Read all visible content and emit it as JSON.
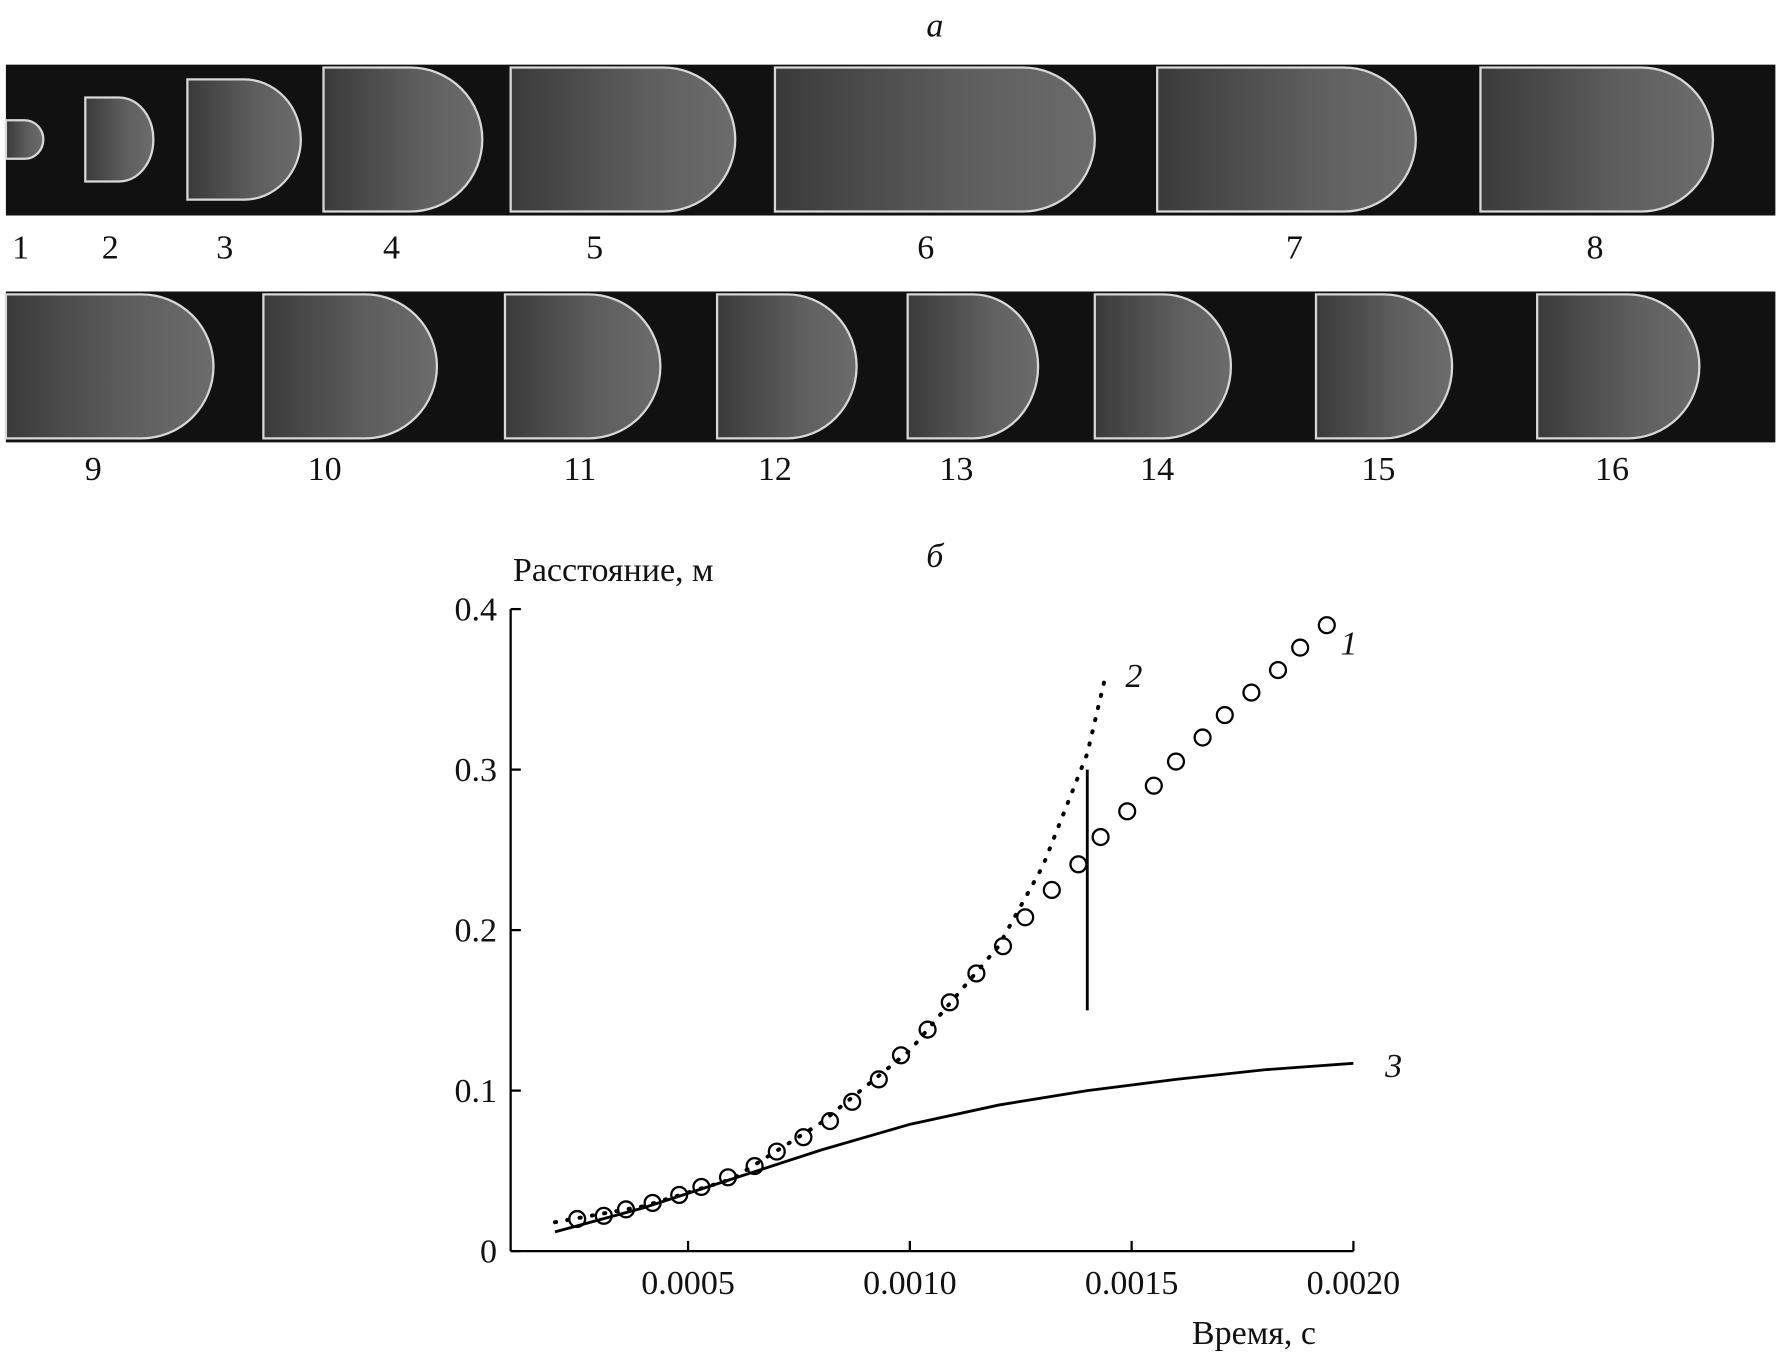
{
  "figure": {
    "panel_a": {
      "label": "а",
      "row1": [
        "1",
        "2",
        "3",
        "4",
        "5",
        "6",
        "7",
        "8"
      ],
      "row2": [
        "9",
        "10",
        "11",
        "12",
        "13",
        "14",
        "15",
        "16"
      ]
    },
    "panel_b": {
      "label": "б"
    }
  },
  "chart_data": {
    "type": "line",
    "x_label": "Время, с",
    "y_label": "Расстояние, м",
    "xlim": [
      0.0001,
      0.002
    ],
    "ylim": [
      0,
      0.4
    ],
    "xticks": [
      0.0005,
      {
        "value": 0.001,
        "label": "0.0010"
      },
      {
        "value": 0.0015,
        "label": "0.0015"
      },
      {
        "value": 0.002,
        "label": "0.0020"
      }
    ],
    "yticks": [
      0,
      0.1,
      0.2,
      0.3,
      0.4
    ],
    "grid": false,
    "series": [
      {
        "name": "1",
        "color": "#000000",
        "marker": "circle",
        "line": "none",
        "x": [
          0.00025,
          0.00031,
          0.00036,
          0.00042,
          0.00048,
          0.00053,
          0.00059,
          0.00065,
          0.0007,
          0.00076,
          0.00082,
          0.00087,
          0.00093,
          0.00098,
          0.00104,
          0.00109,
          0.00115,
          0.00121,
          0.00126,
          0.00132,
          0.00138,
          0.00143,
          0.00149,
          0.00155,
          0.0016,
          0.00166,
          0.00171,
          0.00177,
          0.00183,
          0.00188,
          0.00194
        ],
        "values": [
          0.02,
          0.022,
          0.026,
          0.03,
          0.035,
          0.04,
          0.046,
          0.053,
          0.062,
          0.071,
          0.081,
          0.093,
          0.107,
          0.122,
          0.138,
          0.155,
          0.173,
          0.19,
          0.208,
          0.225,
          0.241,
          0.258,
          0.274,
          0.29,
          0.305,
          0.32,
          0.334,
          0.348,
          0.362,
          0.376,
          0.39
        ]
      },
      {
        "name": "2",
        "color": "#000000",
        "marker": "none",
        "line": "dotted",
        "x": [
          0.0002,
          0.0004,
          0.0006,
          0.0008,
          0.001,
          0.0012,
          0.0013,
          0.0014,
          0.00144
        ],
        "values": [
          0.018,
          0.028,
          0.045,
          0.08,
          0.125,
          0.19,
          0.24,
          0.31,
          0.357
        ]
      },
      {
        "name": "3",
        "color": "#000000",
        "marker": "none",
        "line": "solid",
        "x": [
          0.0002,
          0.0004,
          0.0006,
          0.0008,
          0.001,
          0.0012,
          0.0014,
          0.0016,
          0.0018,
          0.002
        ],
        "values": [
          0.012,
          0.027,
          0.045,
          0.063,
          0.079,
          0.091,
          0.1,
          0.107,
          0.113,
          0.117
        ]
      }
    ],
    "vline": {
      "x": 0.0014,
      "y": [
        0.15,
        0.3
      ]
    }
  }
}
